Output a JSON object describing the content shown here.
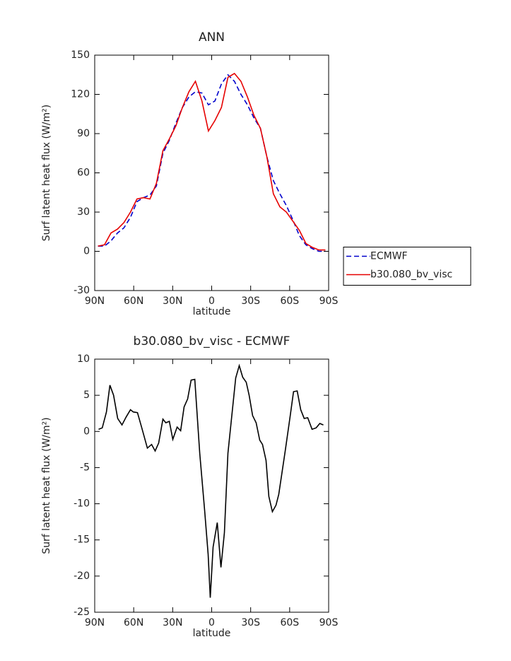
{
  "chart_data": [
    {
      "type": "line",
      "title": "ANN",
      "xlabel": "latitude",
      "ylabel": "Surf latent heat flux (W/m²)",
      "x": [
        87.5,
        82.5,
        77.5,
        72.5,
        67.5,
        62.5,
        57.5,
        52.5,
        47.5,
        42.5,
        37.5,
        32.5,
        27.5,
        22.5,
        17.5,
        12.5,
        7.5,
        2.5,
        -2.5,
        -7.5,
        -12.5,
        -17.5,
        -22.5,
        -27.5,
        -32.5,
        -37.5,
        -42.5,
        -47.5,
        -52.5,
        -57.5,
        -62.5,
        -67.5,
        -72.5,
        -77.5,
        -82.5,
        -87.5
      ],
      "series": [
        {
          "name": "ECMWF",
          "color": "#0000cc",
          "dash": true,
          "values": [
            4,
            4,
            8,
            14,
            18,
            26,
            38,
            41,
            43,
            50,
            75,
            85,
            98,
            110,
            118,
            122,
            121,
            112,
            115,
            128,
            135,
            130,
            120,
            112,
            102,
            94,
            72,
            54,
            44,
            35,
            24,
            12,
            5,
            2,
            0,
            0
          ]
        },
        {
          "name": "b30.080_bv_visc",
          "color": "#e60000",
          "dash": false,
          "values": [
            4,
            5,
            14,
            17,
            22,
            30,
            40,
            41,
            40,
            52,
            77,
            86,
            96,
            110,
            122,
            130,
            115,
            92,
            100,
            110,
            133,
            136,
            130,
            118,
            104,
            94,
            72,
            44,
            34,
            30,
            23,
            16,
            6,
            3,
            1,
            1
          ]
        }
      ],
      "xlim": [
        90,
        -90
      ],
      "xticks": [
        {
          "value": 90,
          "label": "90N"
        },
        {
          "value": 60,
          "label": "60N"
        },
        {
          "value": 30,
          "label": "30N"
        },
        0,
        {
          "value": -30,
          "label": "30S"
        },
        {
          "value": -60,
          "label": "60S"
        },
        {
          "value": -90,
          "label": "90S"
        }
      ],
      "ylim": [
        -30,
        150
      ],
      "yticks": [
        -30,
        0,
        30,
        60,
        90,
        120,
        150
      ],
      "legend": "right"
    },
    {
      "type": "line",
      "title": "b30.080_bv_visc - ECMWF",
      "xlabel": "latitude",
      "ylabel": "Surf latent heat flux (W/m²)",
      "x": [
        87.0,
        84.2,
        81.0,
        78.3,
        75.5,
        72.3,
        69.0,
        65.8,
        62.5,
        60.3,
        57.1,
        53.8,
        49.5,
        46.2,
        43.5,
        40.8,
        37.5,
        35.3,
        32.6,
        29.9,
        26.6,
        23.9,
        21.2,
        18.5,
        15.8,
        13.0,
        9.2,
        5.4,
        2.7,
        1.1,
        -1.1,
        -4.3,
        -7.1,
        -9.8,
        -12.5,
        -18.5,
        -21.2,
        -23.9,
        -26.6,
        -28.8,
        -31.5,
        -34.2,
        -37.0,
        -39.1,
        -41.8,
        -44.0,
        -46.7,
        -49.5,
        -51.6,
        -56.5,
        -60.3,
        -63.0,
        -65.8,
        -68.5,
        -71.2,
        -73.9,
        -77.2,
        -80.4,
        -83.2,
        -85.9
      ],
      "series": [
        {
          "color": "#000000",
          "dash": false,
          "values": [
            0.3,
            0.5,
            2.7,
            6.4,
            5,
            1.8,
            0.9,
            2,
            3,
            2.7,
            2.6,
            0.5,
            -2.3,
            -1.8,
            -2.7,
            -1.6,
            1.7,
            1.2,
            1.4,
            -1.1,
            0.6,
            0.1,
            3.4,
            4.5,
            7.1,
            7.2,
            -3,
            -11,
            -17,
            -23,
            -16,
            -12.6,
            -18.8,
            -14,
            -3,
            7.4,
            9.1,
            7.5,
            6.8,
            5,
            2.2,
            1.2,
            -1.2,
            -1.8,
            -4,
            -9,
            -11.1,
            -10.2,
            -8.7,
            -2.8,
            2,
            5.5,
            5.6,
            3,
            1.8,
            1.9,
            0.3,
            0.5,
            1.1,
            0.9
          ]
        }
      ],
      "xlim": [
        90,
        -90
      ],
      "xticks": [
        {
          "value": 90,
          "label": "90N"
        },
        {
          "value": 60,
          "label": "60N"
        },
        {
          "value": 30,
          "label": "30N"
        },
        0,
        {
          "value": -30,
          "label": "30S"
        },
        {
          "value": -60,
          "label": "60S"
        },
        {
          "value": -90,
          "label": "90S"
        }
      ],
      "ylim": [
        -25,
        10
      ],
      "yticks": [
        -25,
        -20,
        -15,
        -10,
        -5,
        0,
        5,
        10
      ]
    }
  ]
}
